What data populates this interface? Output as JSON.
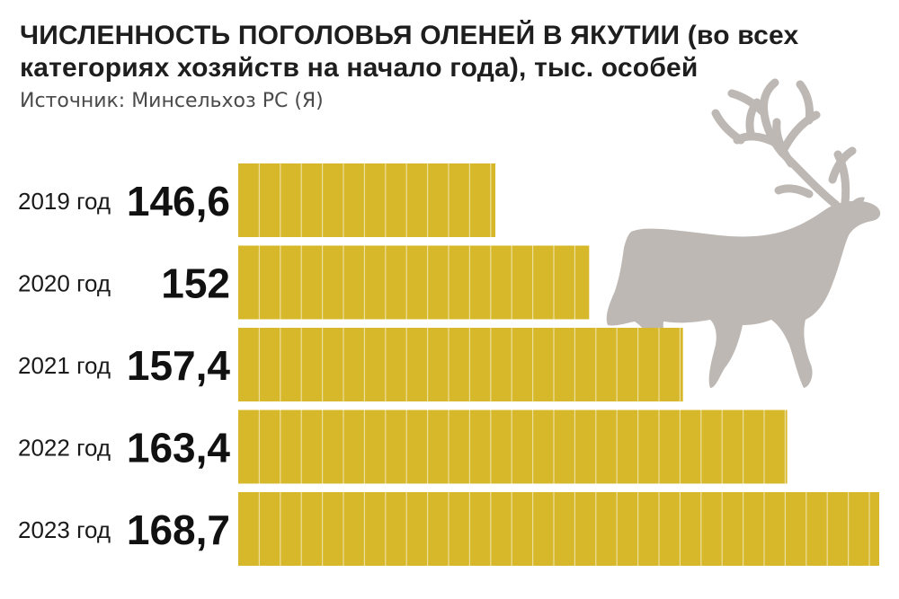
{
  "title": "ЧИСЛЕННОСТЬ ПОГОЛОВЬЯ ОЛЕНЕЙ В ЯКУТИИ (во всех категориях хозяйств на начало года), тыс. особей",
  "source": "Источник: Минсельхоз РС (Я)",
  "colors": {
    "bar": "#d6b82a",
    "bar_divider": "#ffffff",
    "deer": "#bdb8b3"
  },
  "chart_data": {
    "type": "bar",
    "orientation": "horizontal",
    "title": "ЧИСЛЕННОСТЬ ПОГОЛОВЬЯ ОЛЕНЕЙ В ЯКУТИИ (во всех категориях хозяйств на начало года), тыс. особей",
    "categories": [
      "2019 год",
      "2020 год",
      "2021 год",
      "2022 год",
      "2023 год"
    ],
    "values": [
      146.6,
      152,
      157.4,
      163.4,
      168.7
    ],
    "value_labels": [
      "146,6",
      "152",
      "157,4",
      "163,4",
      "168,7"
    ],
    "xlabel": "",
    "ylabel": "",
    "grid": false,
    "legend": "none"
  }
}
